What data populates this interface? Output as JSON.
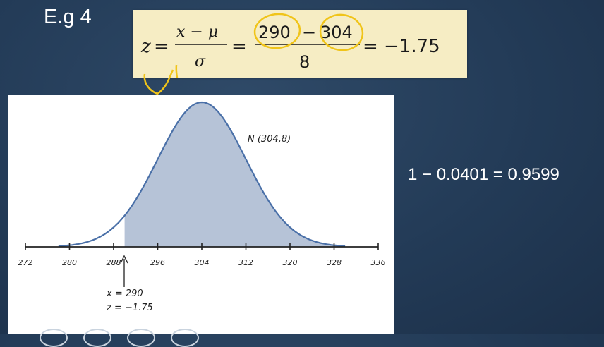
{
  "slide": {
    "title": "E.g 4",
    "result": "1 − 0.0401 = 0.9599"
  },
  "formula": {
    "lhs": "z",
    "eq": "=",
    "numerator": "x − μ",
    "denominator": "σ",
    "sub_numerator_a": "290",
    "sub_minus": "−",
    "sub_numerator_b": "304",
    "sub_denominator": "8",
    "result": "= −1.75"
  },
  "graph": {
    "curve_label": "N (304,8)",
    "marker_x_label": "x = 290",
    "marker_z_label": "z = −1.75"
  },
  "chart_data": {
    "type": "area",
    "mean": 304,
    "sd": 8,
    "x_ticks": [
      "272",
      "280",
      "288",
      "296",
      "304",
      "312",
      "320",
      "328",
      "336"
    ],
    "xlim": [
      272,
      336
    ],
    "shaded_from": 290,
    "grid": false
  },
  "colors": {
    "background": "#233b57",
    "formula_bg": "#f6edc4",
    "curve": "#4a70a8",
    "shade": "#b6c3d7",
    "highlight": "#f0c419"
  }
}
